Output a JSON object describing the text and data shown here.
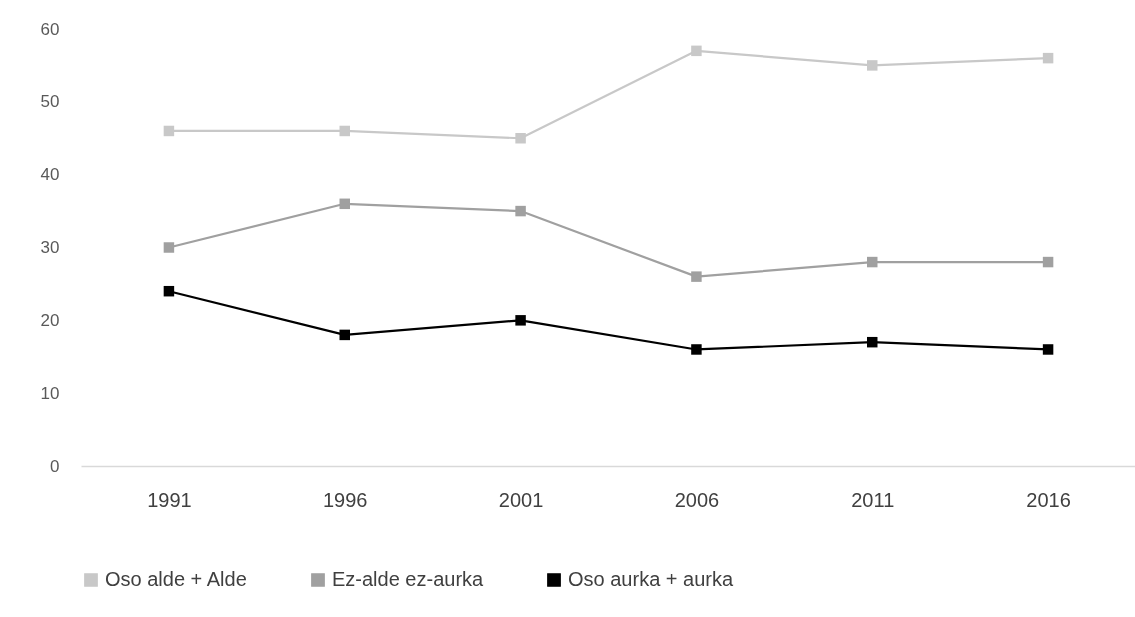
{
  "chart_data": {
    "type": "line",
    "categories": [
      "1991",
      "1996",
      "2001",
      "2006",
      "2011",
      "2016"
    ],
    "ylim": [
      0,
      60
    ],
    "yticks": [
      0,
      10,
      20,
      30,
      40,
      50,
      60
    ],
    "legend": "bottom",
    "marker": "square",
    "series": [
      {
        "name": "Oso alde + Alde",
        "color": "#c8c8c8",
        "values": [
          46,
          46,
          45,
          57,
          55,
          56
        ]
      },
      {
        "name": "Ez-alde ez-aurka",
        "color": "#a0a0a0",
        "values": [
          30,
          36,
          35,
          26,
          28,
          28
        ]
      },
      {
        "name": "Oso aurka + aurka",
        "color": "#000000",
        "values": [
          24,
          18,
          20,
          16,
          17,
          16
        ]
      }
    ]
  }
}
